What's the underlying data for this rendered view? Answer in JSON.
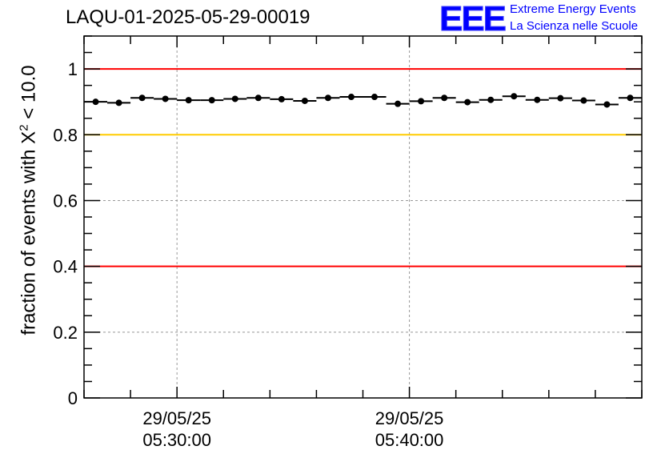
{
  "title": "LAQU-01-2025-05-29-00019",
  "logo": {
    "text": "EEE",
    "line1": "Extreme Energy Events",
    "line2": "La Scienza nelle Scuole",
    "color": "#0000ff"
  },
  "ylabel": {
    "prefix": "fraction of events with ",
    "symbol": "X",
    "exponent": "2",
    "suffix": " < 10.0"
  },
  "chart_data": {
    "type": "scatter",
    "ylim": [
      0,
      1.1
    ],
    "xlim": [
      "29/05/25 05:26:00",
      "29/05/25 05:50:00"
    ],
    "yticks": [
      "0",
      "0.2",
      "0.4",
      "0.6",
      "0.8",
      "1"
    ],
    "xticks": [
      {
        "date": "29/05/25",
        "time": "05:30:00"
      },
      {
        "date": "29/05/25",
        "time": "05:40:00"
      }
    ],
    "bin_width_minutes": 1,
    "x": [
      "05:26:00",
      "05:27:00",
      "05:28:00",
      "05:29:00",
      "05:30:00",
      "05:31:00",
      "05:32:00",
      "05:33:00",
      "05:34:00",
      "05:35:00",
      "05:36:00",
      "05:37:00",
      "05:38:00",
      "05:39:00",
      "05:40:00",
      "05:41:00",
      "05:42:00",
      "05:43:00",
      "05:44:00",
      "05:45:00",
      "05:46:00",
      "05:47:00",
      "05:48:00",
      "05:49:00"
    ],
    "values": [
      0.9,
      0.897,
      0.912,
      0.909,
      0.905,
      0.905,
      0.909,
      0.912,
      0.908,
      0.903,
      0.912,
      0.915,
      0.915,
      0.894,
      0.902,
      0.912,
      0.899,
      0.906,
      0.917,
      0.906,
      0.911,
      0.904,
      0.892,
      0.912
    ],
    "reference_lines": [
      {
        "y": 1.0,
        "color": "#ff0000"
      },
      {
        "y": 0.8,
        "color": "#ffcc00"
      },
      {
        "y": 0.4,
        "color": "#ff0000"
      }
    ],
    "grid": true,
    "marker_color": "#000000"
  }
}
